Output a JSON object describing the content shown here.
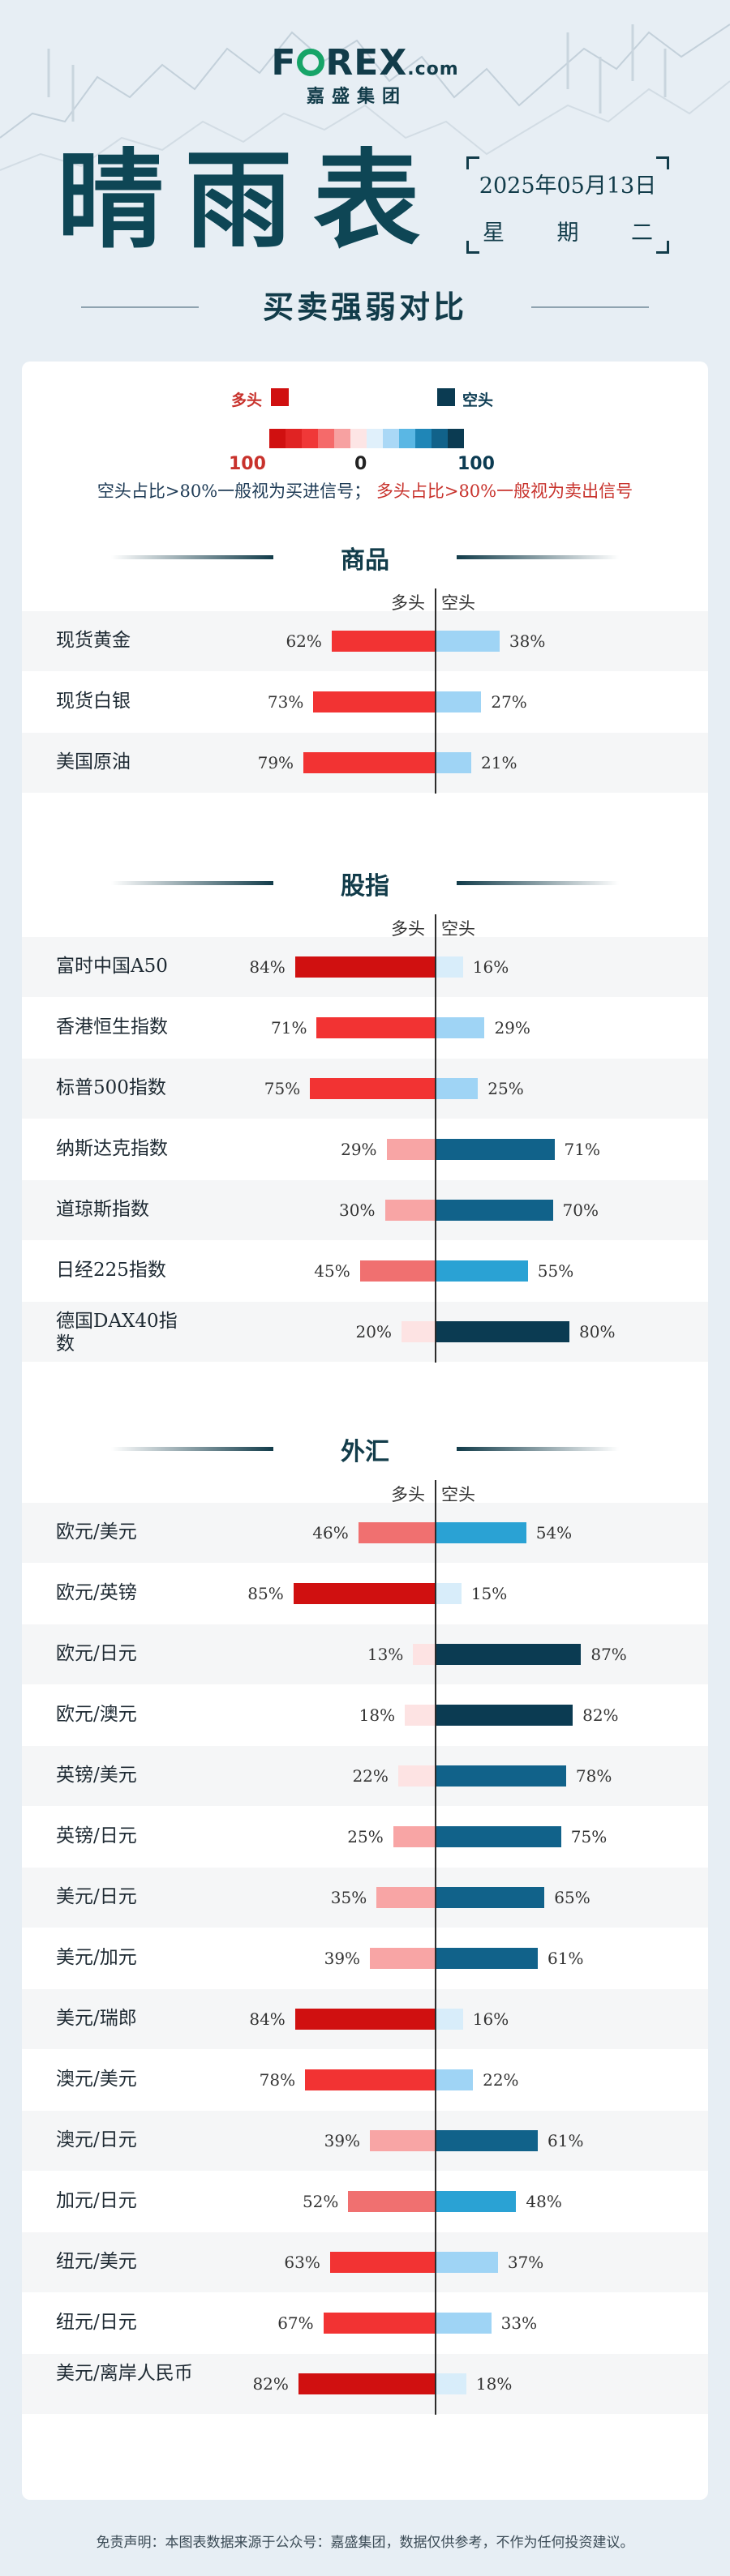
{
  "header": {
    "logo_brand": [
      "F",
      "REX",
      ".com"
    ],
    "logo_sub": "嘉盛集团",
    "title": "晴雨表",
    "date": "2025年05月13日",
    "weekday": [
      "星",
      "期",
      "二"
    ],
    "subtitle": "买卖强弱对比"
  },
  "legend": {
    "long_label": "多头",
    "short_label": "空头",
    "left_num": "100",
    "center_num": "0",
    "right_num": "100",
    "note_short": "空头占比>80%一般视为买进信号；",
    "note_long": "多头占比>80%一般视为卖出信号",
    "gradient": [
      "#d01010",
      "#e02323",
      "#f03838",
      "#f56a6a",
      "#f7a1a1",
      "#fde5e5",
      "#e0f0fb",
      "#aad8f6",
      "#5ab7e4",
      "#1f86b7",
      "#11628a",
      "#0b3b52"
    ]
  },
  "colors": {
    "long_strong": "#d01010",
    "long_mid": "#f03838",
    "long_light": "#f7a1a1",
    "long_faint": "#fde5e5",
    "short_faint": "#e0f0fb",
    "short_light": "#aad8f6",
    "short_mid": "#2aa2d4",
    "short_dark": "#11628a",
    "short_darkest": "#0b3b52"
  },
  "axis": {
    "long": "多头",
    "short": "空头"
  },
  "sections": [
    {
      "title": "商品",
      "rows": [
        {
          "name": "现货黄金",
          "long": 62,
          "short": 38
        },
        {
          "name": "现货白银",
          "long": 73,
          "short": 27
        },
        {
          "name": "美国原油",
          "long": 79,
          "short": 21
        }
      ]
    },
    {
      "title": "股指",
      "rows": [
        {
          "name": "富时中国A50",
          "long": 84,
          "short": 16
        },
        {
          "name": "香港恒生指数",
          "long": 71,
          "short": 29
        },
        {
          "name": "标普500指数",
          "long": 75,
          "short": 25
        },
        {
          "name": "纳斯达克指数",
          "long": 29,
          "short": 71
        },
        {
          "name": "道琼斯指数",
          "long": 30,
          "short": 70
        },
        {
          "name": "日经225指数",
          "long": 45,
          "short": 55
        },
        {
          "name": "德国DAX40指数",
          "long": 20,
          "short": 80
        }
      ]
    },
    {
      "title": "外汇",
      "rows": [
        {
          "name": "欧元/美元",
          "long": 46,
          "short": 54
        },
        {
          "name": "欧元/英镑",
          "long": 85,
          "short": 15
        },
        {
          "name": "欧元/日元",
          "long": 13,
          "short": 87
        },
        {
          "name": "欧元/澳元",
          "long": 18,
          "short": 82
        },
        {
          "name": "英镑/美元",
          "long": 22,
          "short": 78
        },
        {
          "name": "英镑/日元",
          "long": 25,
          "short": 75
        },
        {
          "name": "美元/日元",
          "long": 35,
          "short": 65
        },
        {
          "name": "美元/加元",
          "long": 39,
          "short": 61
        },
        {
          "name": "美元/瑞郎",
          "long": 84,
          "short": 16
        },
        {
          "name": "澳元/美元",
          "long": 78,
          "short": 22
        },
        {
          "name": "澳元/日元",
          "long": 39,
          "short": 61
        },
        {
          "name": "加元/日元",
          "long": 52,
          "short": 48
        },
        {
          "name": "纽元/美元",
          "long": 63,
          "short": 37
        },
        {
          "name": "纽元/日元",
          "long": 67,
          "short": 33
        },
        {
          "name": "美元/离岸人民币",
          "long": 82,
          "short": 18
        }
      ]
    }
  ],
  "chart_data": {
    "type": "bar",
    "series": [
      {
        "name": "多头"
      },
      {
        "name": "空头"
      }
    ],
    "categories": [
      "现货黄金",
      "现货白银",
      "美国原油",
      "富时中国A50",
      "香港恒生指数",
      "标普500指数",
      "纳斯达克指数",
      "道琼斯指数",
      "日经225指数",
      "德国DAX40指数",
      "欧元/美元",
      "欧元/英镑",
      "欧元/日元",
      "欧元/澳元",
      "英镑/美元",
      "英镑/日元",
      "美元/日元",
      "美元/加元",
      "美元/瑞郎",
      "澳元/美元",
      "澳元/日元",
      "加元/日元",
      "纽元/美元",
      "纽元/日元",
      "美元/离岸人民币"
    ],
    "long_values": [
      62,
      73,
      79,
      84,
      71,
      75,
      29,
      30,
      45,
      20,
      46,
      85,
      13,
      18,
      22,
      25,
      35,
      39,
      84,
      78,
      39,
      52,
      63,
      67,
      82
    ],
    "short_values": [
      38,
      27,
      21,
      16,
      29,
      25,
      71,
      70,
      55,
      80,
      54,
      15,
      87,
      82,
      78,
      75,
      65,
      61,
      16,
      22,
      61,
      48,
      37,
      33,
      18
    ],
    "unit": "%"
  },
  "footer": "免责声明：本图表数据来源于公众号：嘉盛集团，数据仅供参考，不作为任何投资建议。"
}
